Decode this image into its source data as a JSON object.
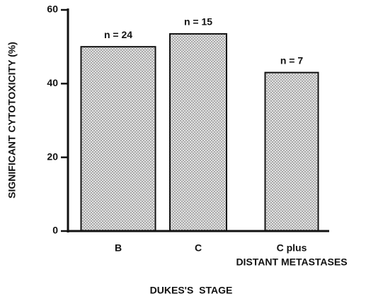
{
  "chart_data": {
    "type": "bar",
    "categories": [
      "B",
      "C",
      "C plus"
    ],
    "values": [
      50,
      53.5,
      43
    ],
    "bar_labels": [
      "n = 24",
      "n = 15",
      "n = 7"
    ],
    "annotation": "DISTANT METASTASES",
    "xlabel": "DUKES'S  STAGE",
    "ylabel": "SIGNIFICANT CYTOTOXICITY  (%)",
    "ylim": [
      0,
      60
    ],
    "yticks": [
      0,
      20,
      40,
      60
    ],
    "color": "#e2e2e2"
  }
}
